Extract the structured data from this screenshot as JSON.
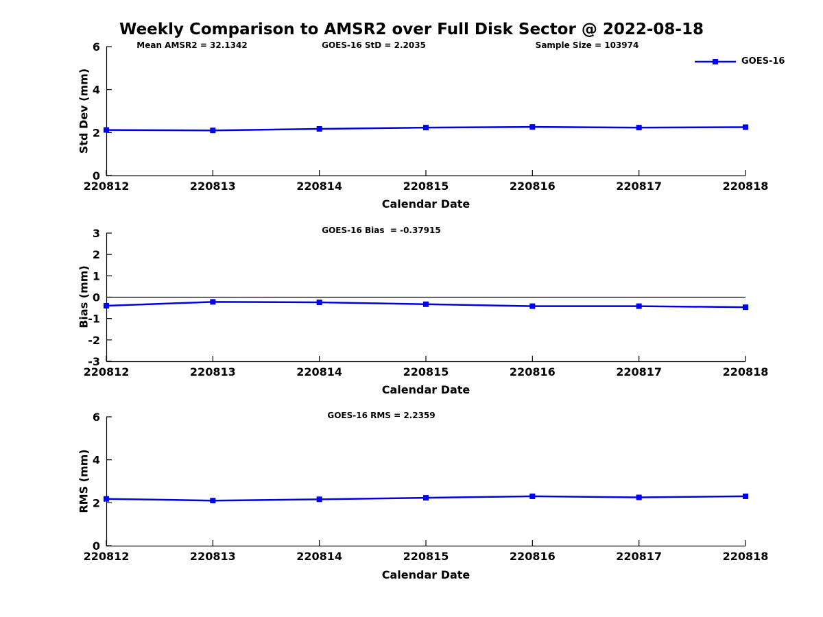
{
  "title": "Weekly Comparison to AMSR2 over Full Disk Sector @ 2022-08-18",
  "annotations": {
    "mean_amsr2": "Mean AMSR2 = 32.1342",
    "goes16_std": "GOES-16 StD = 2.2035",
    "sample_size": "Sample Size = 103974",
    "goes16_bias": "GOES-16 Bias  = -0.37915",
    "goes16_rms": "GOES-16 RMS = 2.2359"
  },
  "legend": {
    "label": "GOES-16",
    "position": "top-right-outside"
  },
  "colors": {
    "line": "#0000DD",
    "marker": "#0000FF",
    "axis": "#000000",
    "zero_line": "#000000",
    "text": "#000000",
    "background": "#FFFFFF"
  },
  "chart_data": [
    {
      "type": "line",
      "subplot": "std-dev",
      "xlabel": "Calendar Date",
      "ylabel": "Std Dev (mm)",
      "categories": [
        "220812",
        "220813",
        "220814",
        "220815",
        "220816",
        "220817",
        "220818"
      ],
      "series": [
        {
          "name": "GOES-16",
          "marker": "square",
          "values": [
            2.12,
            2.1,
            2.17,
            2.23,
            2.26,
            2.23,
            2.25
          ]
        }
      ],
      "ylim": [
        0,
        6
      ],
      "yticks": [
        0,
        2,
        4,
        6
      ],
      "grid": false,
      "zero_line": false
    },
    {
      "type": "line",
      "subplot": "bias",
      "xlabel": "Calendar Date",
      "ylabel": "Bias (mm)",
      "categories": [
        "220812",
        "220813",
        "220814",
        "220815",
        "220816",
        "220817",
        "220818"
      ],
      "series": [
        {
          "name": "GOES-16",
          "marker": "square",
          "values": [
            -0.4,
            -0.22,
            -0.24,
            -0.33,
            -0.42,
            -0.42,
            -0.47
          ]
        }
      ],
      "ylim": [
        -3,
        3
      ],
      "yticks": [
        -3,
        -2,
        -1,
        0,
        1,
        2,
        3
      ],
      "grid": false,
      "zero_line": true
    },
    {
      "type": "line",
      "subplot": "rms",
      "xlabel": "Calendar Date",
      "ylabel": "RMS (mm)",
      "categories": [
        "220812",
        "220813",
        "220814",
        "220815",
        "220816",
        "220817",
        "220818"
      ],
      "series": [
        {
          "name": "GOES-16",
          "marker": "square",
          "values": [
            2.18,
            2.1,
            2.16,
            2.23,
            2.3,
            2.25,
            2.3
          ]
        }
      ],
      "ylim": [
        0,
        6
      ],
      "yticks": [
        0,
        2,
        4,
        6
      ],
      "grid": false,
      "zero_line": false
    }
  ]
}
